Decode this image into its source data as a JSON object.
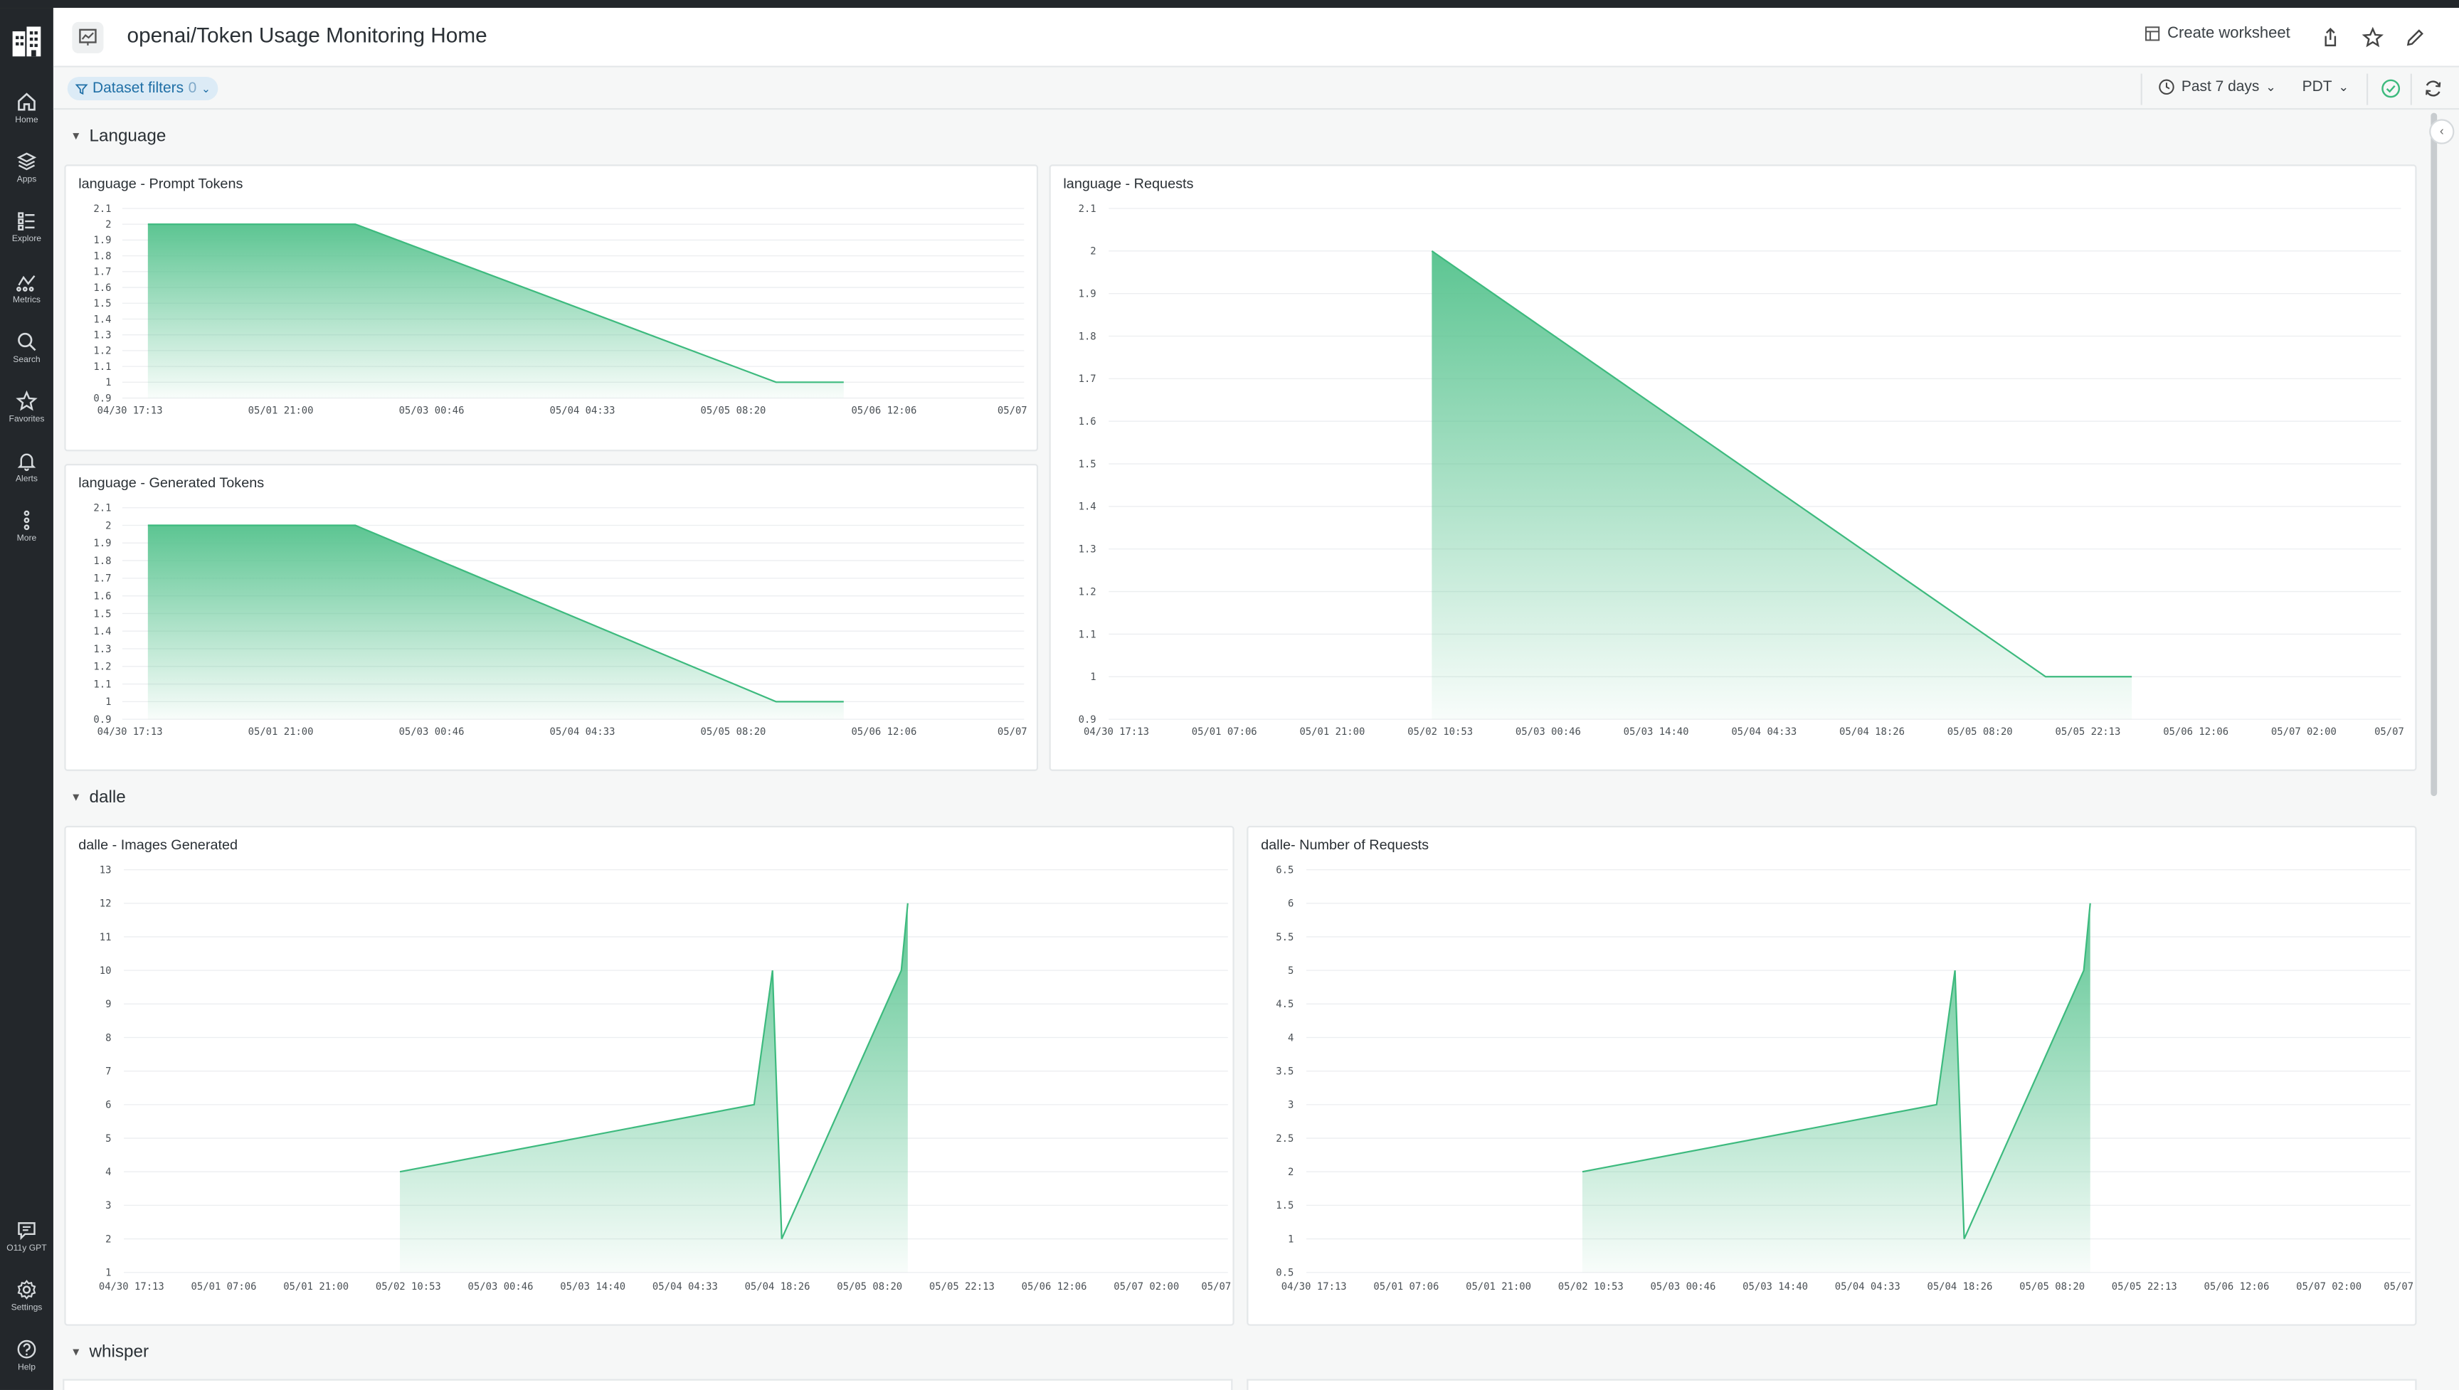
{
  "app": {
    "title": "openai/Token Usage Monitoring Home"
  },
  "sidebar": {
    "items": [
      {
        "label": "Home",
        "icon": "home-icon"
      },
      {
        "label": "Apps",
        "icon": "layers-icon"
      },
      {
        "label": "Explore",
        "icon": "list-icon"
      },
      {
        "label": "Metrics",
        "icon": "metrics-icon"
      },
      {
        "label": "Search",
        "icon": "search-icon"
      },
      {
        "label": "Favorites",
        "icon": "star-icon"
      },
      {
        "label": "Alerts",
        "icon": "bell-icon"
      },
      {
        "label": "More",
        "icon": "more-icon"
      }
    ],
    "bottom_items": [
      {
        "label": "O11y GPT",
        "icon": "chat-icon"
      },
      {
        "label": "Settings",
        "icon": "gear-icon"
      },
      {
        "label": "Help",
        "icon": "help-icon"
      }
    ]
  },
  "header": {
    "create_worksheet": "Create worksheet"
  },
  "subbar": {
    "dataset_filters": "Dataset filters",
    "filter_count": "0",
    "time_range": "Past 7 days",
    "timezone": "PDT"
  },
  "colors": {
    "accent": "#3dba7e",
    "area_top": "#5cc592",
    "sidebar_bg": "#23272b"
  },
  "sections": [
    {
      "name": "Language"
    },
    {
      "name": "dalle"
    },
    {
      "name": "whisper"
    }
  ],
  "chart_data": [
    {
      "id": "lang-prompt",
      "type": "area",
      "title": "language - Prompt Tokens",
      "x_ticks": [
        "04/30 17:13",
        "05/01 21:00",
        "05/03 00:46",
        "05/04 04:33",
        "05/05 08:20",
        "05/06 12:06",
        "05/07"
      ],
      "y_ticks": [
        "0.9",
        "1",
        "1.1",
        "1.2",
        "1.3",
        "1.4",
        "1.5",
        "1.6",
        "1.7",
        "1.8",
        "1.9",
        "2",
        "2.1"
      ],
      "ylim": [
        0.9,
        2.1
      ],
      "x_domain": [
        0,
        6
      ],
      "points": [
        [
          0.17,
          2
        ],
        [
          1.55,
          2
        ],
        [
          4.35,
          1
        ],
        [
          4.8,
          1
        ]
      ]
    },
    {
      "id": "lang-generated",
      "type": "area",
      "title": "language - Generated Tokens",
      "x_ticks": [
        "04/30 17:13",
        "05/01 21:00",
        "05/03 00:46",
        "05/04 04:33",
        "05/05 08:20",
        "05/06 12:06",
        "05/07"
      ],
      "y_ticks": [
        "0.9",
        "1",
        "1.1",
        "1.2",
        "1.3",
        "1.4",
        "1.5",
        "1.6",
        "1.7",
        "1.8",
        "1.9",
        "2",
        "2.1"
      ],
      "ylim": [
        0.9,
        2.1
      ],
      "x_domain": [
        0,
        6
      ],
      "points": [
        [
          0.17,
          2
        ],
        [
          1.55,
          2
        ],
        [
          4.35,
          1
        ],
        [
          4.8,
          1
        ]
      ]
    },
    {
      "id": "lang-requests",
      "type": "area",
      "title": "language - Requests",
      "x_ticks": [
        "04/30 17:13",
        "05/01 07:06",
        "05/01 21:00",
        "05/02 10:53",
        "05/03 00:46",
        "05/03 14:40",
        "05/04 04:33",
        "05/04 18:26",
        "05/05 08:20",
        "05/05 22:13",
        "05/06 12:06",
        "05/07 02:00",
        "05/07"
      ],
      "y_ticks": [
        "0.9",
        "1",
        "1.1",
        "1.2",
        "1.3",
        "1.4",
        "1.5",
        "1.6",
        "1.7",
        "1.8",
        "1.9",
        "2",
        "2.1"
      ],
      "ylim": [
        0.9,
        2.1
      ],
      "x_domain": [
        0,
        12
      ],
      "points": [
        [
          3,
          2
        ],
        [
          8.7,
          1
        ],
        [
          9.5,
          1
        ]
      ]
    },
    {
      "id": "dalle-images",
      "type": "area",
      "title": "dalle - Images Generated",
      "x_ticks": [
        "04/30 17:13",
        "05/01 07:06",
        "05/01 21:00",
        "05/02 10:53",
        "05/03 00:46",
        "05/03 14:40",
        "05/04 04:33",
        "05/04 18:26",
        "05/05 08:20",
        "05/05 22:13",
        "05/06 12:06",
        "05/07 02:00",
        "05/07"
      ],
      "y_ticks": [
        "1",
        "2",
        "3",
        "4",
        "5",
        "6",
        "7",
        "8",
        "9",
        "10",
        "11",
        "12",
        "13"
      ],
      "ylim": [
        1,
        13
      ],
      "x_domain": [
        0,
        12
      ],
      "points": [
        [
          3,
          4
        ],
        [
          6.85,
          6
        ],
        [
          7.05,
          10
        ],
        [
          7.15,
          2
        ],
        [
          8.45,
          10
        ],
        [
          8.52,
          12
        ]
      ]
    },
    {
      "id": "dalle-requests",
      "type": "area",
      "title": "dalle- Number of Requests",
      "x_ticks": [
        "04/30 17:13",
        "05/01 07:06",
        "05/01 21:00",
        "05/02 10:53",
        "05/03 00:46",
        "05/03 14:40",
        "05/04 04:33",
        "05/04 18:26",
        "05/05 08:20",
        "05/05 22:13",
        "05/06 12:06",
        "05/07 02:00",
        "05/07"
      ],
      "y_ticks": [
        "0.5",
        "1",
        "1.5",
        "2",
        "2.5",
        "3",
        "3.5",
        "4",
        "4.5",
        "5",
        "5.5",
        "6",
        "6.5"
      ],
      "ylim": [
        0.5,
        6.5
      ],
      "x_domain": [
        0,
        12
      ],
      "points": [
        [
          3,
          2
        ],
        [
          6.85,
          3
        ],
        [
          7.05,
          5
        ],
        [
          7.15,
          1
        ],
        [
          8.45,
          5
        ],
        [
          8.52,
          6
        ]
      ]
    }
  ]
}
